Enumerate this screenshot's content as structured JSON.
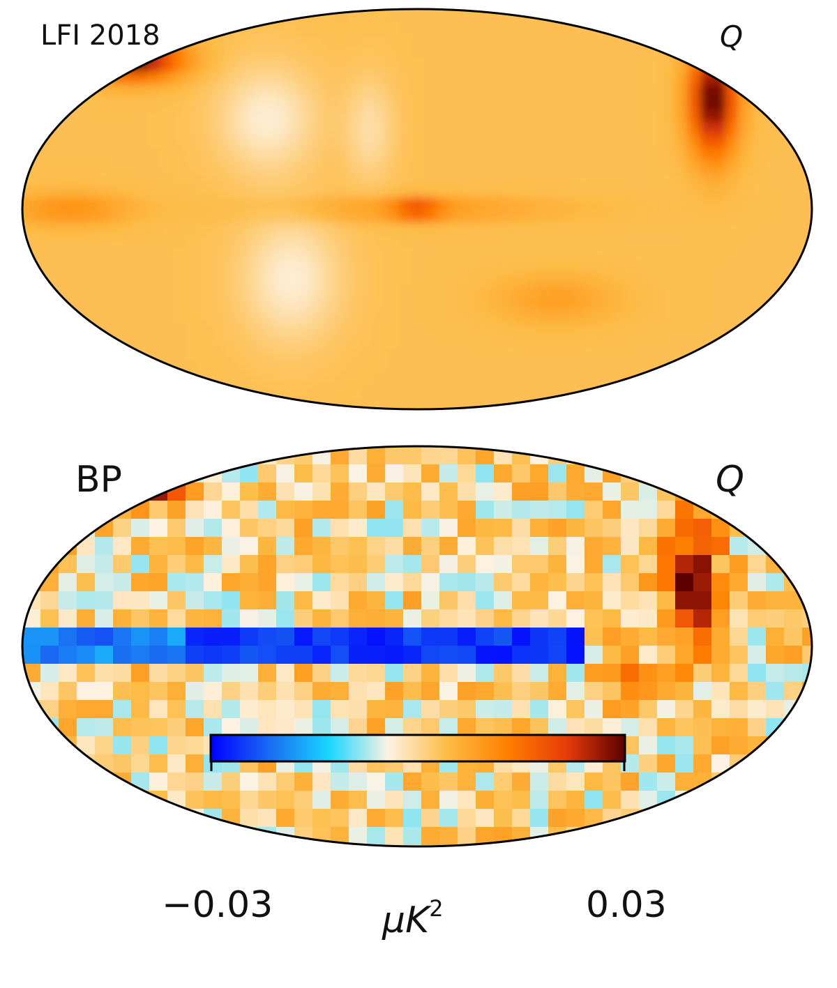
{
  "panels": [
    {
      "label_left": "LFI 2018",
      "label_right": "Q",
      "projection": "mollweide",
      "style": "smooth"
    },
    {
      "label_left": "BP",
      "label_right": "Q",
      "projection": "mollweide",
      "style": "pixelated"
    }
  ],
  "colorbar": {
    "min_label": "−0.03",
    "max_label": "0.03",
    "unit_base": "μK",
    "unit_exp": "2",
    "range": [
      -0.03,
      0.03
    ],
    "colors": [
      "#0000ff",
      "#1a6cf2",
      "#19d6ff",
      "#fdf2e2",
      "#fdbb45",
      "#ff8000",
      "#e83c0a",
      "#5c0000"
    ]
  }
}
